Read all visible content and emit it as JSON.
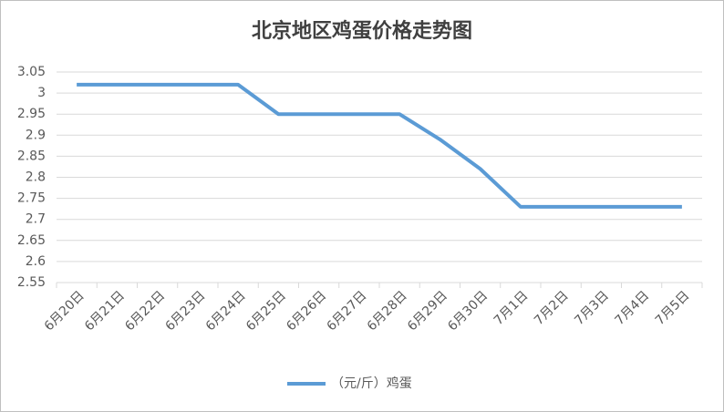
{
  "chart_data": {
    "type": "line",
    "title": "北京地区鸡蛋价格走势图",
    "categories": [
      "6月20日",
      "6月21日",
      "6月22日",
      "6月23日",
      "6月24日",
      "6月25日",
      "6月26日",
      "6月27日",
      "6月28日",
      "6月29日",
      "6月30日",
      "7月1日",
      "7月2日",
      "7月3日",
      "7月4日",
      "7月5日"
    ],
    "series": [
      {
        "name": "（元/斤）鸡蛋",
        "color": "#5b9bd5",
        "values": [
          3.02,
          3.02,
          3.02,
          3.02,
          3.02,
          2.95,
          2.95,
          2.95,
          2.95,
          2.89,
          2.82,
          2.73,
          2.73,
          2.73,
          2.73,
          2.73
        ]
      }
    ],
    "ylim": [
      2.55,
      3.05
    ],
    "yticks": [
      2.55,
      2.6,
      2.65,
      2.7,
      2.75,
      2.8,
      2.85,
      2.9,
      2.95,
      3,
      3.05
    ],
    "grid": true,
    "legend": "bottom"
  }
}
